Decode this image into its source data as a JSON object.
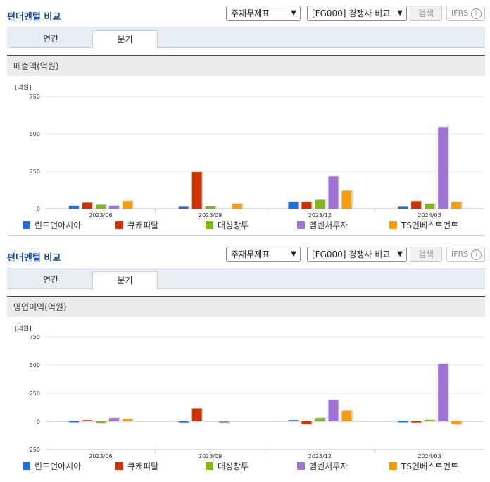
{
  "panels": [
    {
      "title": "펀더멘털 비교",
      "select1": "주재무제표",
      "select2": "[FG000] 경쟁사 비교",
      "search": "검색",
      "ifrs": "IFRS",
      "ifrs_help": "?",
      "tabs": [
        "연간",
        "분기"
      ],
      "section": "매출액(억원)"
    },
    {
      "title": "펀더멘털 비교",
      "select1": "주재무제표",
      "select2": "[FG000] 경쟁사 비교",
      "search": "검색",
      "ifrs": "IFRS",
      "ifrs_help": "?",
      "tabs": [
        "연간",
        "분기"
      ],
      "section": "영업이익(억원)"
    }
  ],
  "chart_data": [
    {
      "type": "bar",
      "unit": "[억원]",
      "categories": [
        "2023/06",
        "2023/09",
        "2023/12",
        "2024/03"
      ],
      "ylim": [
        0,
        750
      ],
      "yticks": [
        0,
        250,
        500,
        750
      ],
      "grid": true,
      "legend_position": "bottom",
      "series": [
        {
          "name": "린드먼아시아",
          "color": "#1f6fd8",
          "values": [
            18,
            12,
            45,
            12
          ]
        },
        {
          "name": "큐캐피탈",
          "color": "#cc3300",
          "values": [
            40,
            245,
            45,
            50
          ]
        },
        {
          "name": "대성창투",
          "color": "#80b915",
          "values": [
            25,
            15,
            58,
            32
          ]
        },
        {
          "name": "엠벤처투자",
          "color": "#9f73d6",
          "values": [
            18,
            0,
            215,
            545
          ]
        },
        {
          "name": "TS인베스트먼트",
          "color": "#f59c0f",
          "values": [
            50,
            32,
            120,
            45
          ]
        }
      ]
    },
    {
      "type": "bar",
      "unit": "[억원]",
      "categories": [
        "2023/06",
        "2023/09",
        "2023/12",
        "2024/03"
      ],
      "ylim": [
        -250,
        750
      ],
      "yticks": [
        -250,
        0,
        250,
        500,
        750
      ],
      "grid": true,
      "legend_position": "bottom",
      "series": [
        {
          "name": "린드먼아시아",
          "color": "#1f6fd8",
          "values": [
            -8,
            -10,
            10,
            -8
          ]
        },
        {
          "name": "큐캐피탈",
          "color": "#cc3300",
          "values": [
            10,
            115,
            -25,
            -10
          ]
        },
        {
          "name": "대성창투",
          "color": "#80b915",
          "values": [
            -12,
            0,
            30,
            12
          ]
        },
        {
          "name": "엠벤처투자",
          "color": "#9f73d6",
          "values": [
            30,
            -10,
            190,
            510
          ]
        },
        {
          "name": "TS인베스트먼트",
          "color": "#f59c0f",
          "values": [
            22,
            0,
            95,
            -25
          ]
        }
      ]
    }
  ]
}
